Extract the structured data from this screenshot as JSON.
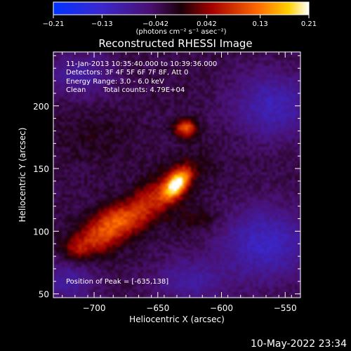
{
  "chart_data": {
    "type": "heatmap",
    "title": "Reconstructed RHESSI Image",
    "xlabel": "Heliocentric X (arcsec)",
    "ylabel": "Heliocentric Y (arcsec)",
    "xlim": [
      -732,
      -538
    ],
    "ylim": [
      47,
      243
    ],
    "x_ticks": [
      -700,
      -650,
      -600,
      -550
    ],
    "x_tick_labels": [
      "−700",
      "−650",
      "−600",
      "−550"
    ],
    "y_ticks": [
      50,
      100,
      150,
      200
    ],
    "y_tick_labels": [
      "50",
      "100",
      "150",
      "200"
    ],
    "colorbar": {
      "range": [
        -0.21,
        0.21
      ],
      "ticks": [
        -0.21,
        -0.13,
        -0.042,
        0.042,
        0.13,
        0.21
      ],
      "tick_labels": [
        "−0.21",
        "−0.13",
        "−0.042",
        "0.042",
        "0.13",
        "0.21"
      ],
      "unit_label": "(photons cm⁻² s⁻¹ asec⁻²)",
      "colormap": "blue-purple-red-orange-yellow-white"
    },
    "peak": {
      "x": -635,
      "y": 138,
      "value": 0.21
    },
    "sources": [
      {
        "x": -635,
        "y": 138,
        "amplitude": 0.21,
        "sigma_major": 9,
        "sigma_minor": 5,
        "angle_deg": 55
      },
      {
        "x": -628,
        "y": 182,
        "amplitude": 0.14,
        "sigma_major": 6,
        "sigma_minor": 5,
        "angle_deg": 0
      },
      {
        "x": -660,
        "y": 120,
        "amplitude": 0.11,
        "sigma_major": 32,
        "sigma_minor": 10,
        "angle_deg": 38
      },
      {
        "x": -700,
        "y": 95,
        "amplitude": 0.08,
        "sigma_major": 14,
        "sigma_minor": 9,
        "angle_deg": 20
      },
      {
        "x": -685,
        "y": 110,
        "amplitude": 0.06,
        "sigma_major": 12,
        "sigma_minor": 8,
        "angle_deg": 10
      },
      {
        "x": -715,
        "y": 85,
        "amplitude": 0.05,
        "sigma_major": 7,
        "sigma_minor": 6,
        "angle_deg": 0
      },
      {
        "x": -620,
        "y": 110,
        "amplitude": 0.035,
        "sigma_major": 12,
        "sigma_minor": 8,
        "angle_deg": 0
      },
      {
        "x": -700,
        "y": 175,
        "amplitude": 0.02,
        "sigma_major": 20,
        "sigma_minor": 15,
        "angle_deg": 0
      },
      {
        "x": -565,
        "y": 90,
        "amplitude": -0.09,
        "sigma_major": 25,
        "sigma_minor": 20,
        "angle_deg": 0
      },
      {
        "x": -560,
        "y": 200,
        "amplitude": -0.08,
        "sigma_major": 22,
        "sigma_minor": 18,
        "angle_deg": 0
      },
      {
        "x": -710,
        "y": 225,
        "amplitude": -0.06,
        "sigma_major": 18,
        "sigma_minor": 12,
        "angle_deg": 0
      },
      {
        "x": -720,
        "y": 60,
        "amplitude": -0.06,
        "sigma_major": 15,
        "sigma_minor": 12,
        "angle_deg": 0
      },
      {
        "x": -625,
        "y": 60,
        "amplitude": -0.06,
        "sigma_major": 20,
        "sigma_minor": 12,
        "angle_deg": 0
      }
    ],
    "background": -0.03,
    "grid": false
  },
  "info": {
    "time_range": "11-Jan-2013 10:35:40.000 to 10:39:36.000",
    "detectors": "Detectors: 3F 4F 5F 6F 7F 8F, Att 0",
    "energy_range": "Energy Range: 3.0 - 6.0 keV",
    "algorithm": "Clean",
    "total_counts": "Total counts: 4.79E+04",
    "peak_position": "Position of Peak = [-635,138]"
  },
  "footer": {
    "date": "10-May-2022 23:34"
  }
}
